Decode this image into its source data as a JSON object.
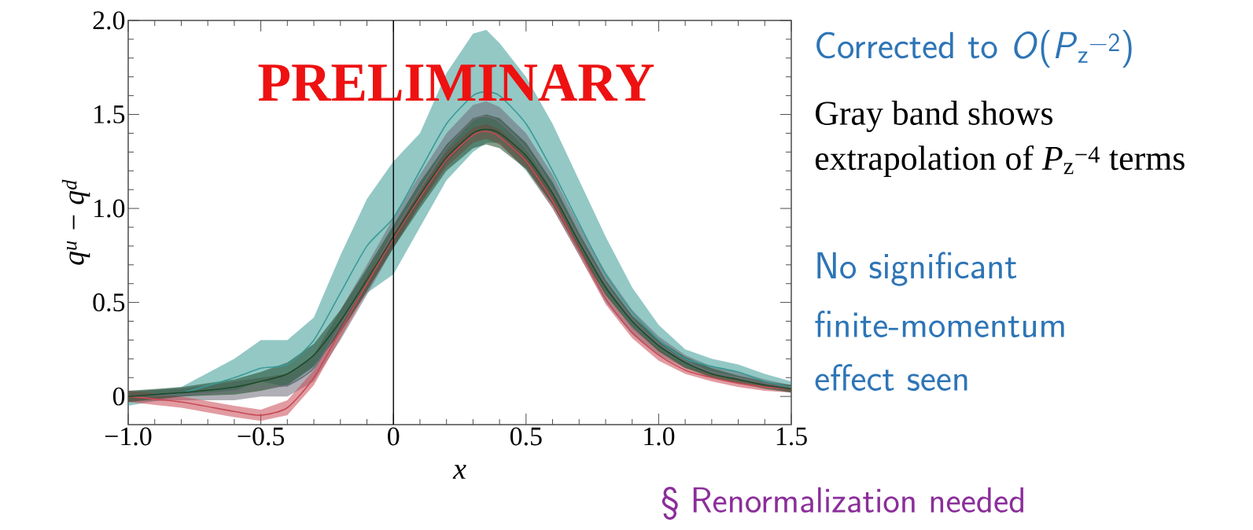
{
  "chart_data": {
    "type": "line",
    "xlabel": "x",
    "ylabel": "q$^{u}$ − q$^{d}$",
    "x": [
      -1.0,
      -0.8,
      -0.6,
      -0.5,
      -0.4,
      -0.3,
      -0.2,
      -0.1,
      0.0,
      0.1,
      0.2,
      0.3,
      0.35,
      0.4,
      0.5,
      0.6,
      0.7,
      0.8,
      0.9,
      1.0,
      1.1,
      1.2,
      1.3,
      1.4,
      1.5
    ],
    "series": [
      {
        "color": "#3a9a96",
        "values": [
          0.0,
          0.02,
          0.1,
          0.15,
          0.17,
          0.3,
          0.55,
          0.8,
          0.95,
          1.2,
          1.45,
          1.6,
          1.62,
          1.6,
          1.45,
          1.2,
          0.92,
          0.65,
          0.45,
          0.3,
          0.2,
          0.16,
          0.13,
          0.08,
          0.05
        ],
        "lower": [
          -0.05,
          0.0,
          0.03,
          0.08,
          0.05,
          0.15,
          0.35,
          0.55,
          0.65,
          0.9,
          1.15,
          1.3,
          1.35,
          1.35,
          1.2,
          1.0,
          0.75,
          0.5,
          0.33,
          0.22,
          0.15,
          0.12,
          0.1,
          0.06,
          0.03
        ],
        "upper": [
          0.02,
          0.05,
          0.2,
          0.3,
          0.3,
          0.42,
          0.75,
          1.05,
          1.25,
          1.4,
          1.72,
          1.93,
          1.95,
          1.88,
          1.7,
          1.45,
          1.15,
          0.85,
          0.58,
          0.38,
          0.25,
          0.2,
          0.17,
          0.12,
          0.08
        ]
      },
      {
        "color": "#6e6e78",
        "values": [
          0.0,
          0.01,
          0.03,
          0.05,
          0.06,
          0.15,
          0.38,
          0.62,
          0.87,
          1.1,
          1.32,
          1.47,
          1.49,
          1.46,
          1.32,
          1.1,
          0.84,
          0.6,
          0.41,
          0.28,
          0.19,
          0.13,
          0.1,
          0.07,
          0.04
        ],
        "lower": [
          -0.03,
          -0.02,
          -0.02,
          0.0,
          0.0,
          0.08,
          0.3,
          0.54,
          0.79,
          1.02,
          1.24,
          1.39,
          1.41,
          1.38,
          1.24,
          1.02,
          0.77,
          0.54,
          0.36,
          0.24,
          0.16,
          0.1,
          0.07,
          0.05,
          0.02
        ],
        "upper": [
          0.03,
          0.04,
          0.08,
          0.1,
          0.12,
          0.22,
          0.46,
          0.7,
          0.95,
          1.18,
          1.4,
          1.55,
          1.57,
          1.54,
          1.4,
          1.18,
          0.91,
          0.66,
          0.46,
          0.32,
          0.22,
          0.16,
          0.13,
          0.09,
          0.06
        ]
      },
      {
        "color": "#c84a55",
        "values": [
          0.0,
          -0.03,
          -0.08,
          -0.1,
          -0.06,
          0.1,
          0.35,
          0.6,
          0.84,
          1.06,
          1.26,
          1.39,
          1.41,
          1.38,
          1.25,
          1.04,
          0.78,
          0.52,
          0.34,
          0.22,
          0.14,
          0.1,
          0.07,
          0.05,
          0.04
        ],
        "lower": [
          -0.03,
          -0.06,
          -0.11,
          -0.13,
          -0.1,
          0.06,
          0.31,
          0.56,
          0.8,
          1.02,
          1.22,
          1.35,
          1.37,
          1.34,
          1.21,
          1.0,
          0.75,
          0.49,
          0.31,
          0.19,
          0.12,
          0.08,
          0.05,
          0.03,
          0.02
        ],
        "upper": [
          0.03,
          0.0,
          -0.05,
          -0.07,
          -0.02,
          0.14,
          0.39,
          0.64,
          0.88,
          1.1,
          1.3,
          1.43,
          1.45,
          1.42,
          1.29,
          1.08,
          0.81,
          0.55,
          0.37,
          0.25,
          0.16,
          0.12,
          0.09,
          0.07,
          0.06
        ]
      },
      {
        "color": "#1f4a2a",
        "values": [
          0.0,
          0.02,
          0.05,
          0.08,
          0.12,
          0.22,
          0.4,
          0.62,
          0.85,
          1.07,
          1.27,
          1.4,
          1.42,
          1.4,
          1.28,
          1.08,
          0.82,
          0.58,
          0.4,
          0.27,
          0.18,
          0.12,
          0.09,
          0.06,
          0.04
        ],
        "lower": [
          -0.03,
          0.0,
          0.01,
          0.03,
          0.06,
          0.16,
          0.34,
          0.56,
          0.79,
          1.0,
          1.2,
          1.32,
          1.34,
          1.32,
          1.21,
          1.02,
          0.77,
          0.54,
          0.37,
          0.24,
          0.15,
          0.1,
          0.07,
          0.04,
          0.02
        ],
        "upper": [
          0.03,
          0.05,
          0.09,
          0.13,
          0.18,
          0.28,
          0.46,
          0.68,
          0.91,
          1.14,
          1.34,
          1.48,
          1.5,
          1.48,
          1.35,
          1.14,
          0.87,
          0.62,
          0.43,
          0.3,
          0.21,
          0.15,
          0.11,
          0.08,
          0.06
        ]
      }
    ],
    "xlim": [
      -1.0,
      1.5
    ],
    "ylim": [
      -0.15,
      2.0
    ],
    "xticks": [
      {
        "value": -1.0,
        "label": "−1.0"
      },
      {
        "value": -0.5,
        "label": "−0.5"
      },
      0,
      {
        "value": 0.5,
        "label": "0.5"
      },
      {
        "value": 1.0,
        "label": "1.0"
      },
      {
        "value": 1.5,
        "label": "1.5"
      }
    ],
    "yticks": [
      0,
      {
        "value": 0.5,
        "label": "0.5"
      },
      {
        "value": 1.0,
        "label": "1.0"
      },
      {
        "value": 1.5,
        "label": "1.5"
      },
      {
        "value": 2.0,
        "label": "2.0"
      }
    ],
    "ref_lines": [
      {
        "axis": "x",
        "value": 0,
        "color": "#000000"
      }
    ],
    "annotations": [
      "PRELIMINARY",
      "Corrected to *O*(*P*$_{z}$$^{−2}$)",
      "Gray band shows",
      "extrapolation of *P*$_{z}$$^{−4}$ terms",
      "No significant",
      "finite-momentum",
      "effect seen",
      "§ Renormalization needed"
    ]
  }
}
